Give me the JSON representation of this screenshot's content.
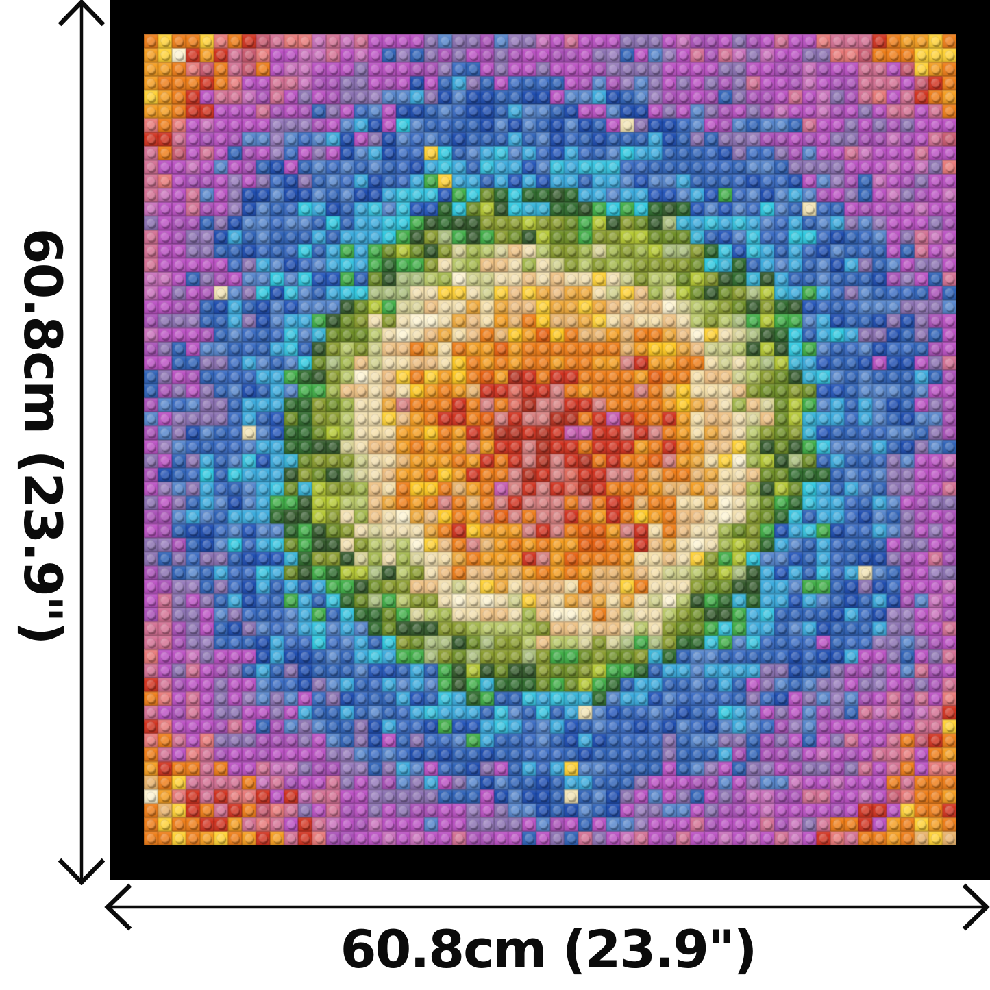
{
  "artwork": {
    "type": "brick-mosaic-in-frame",
    "frame_color": "#000000",
    "background": "#ffffff",
    "mosaic": {
      "grid": 58,
      "seed": 20,
      "noise": {
        "scale": 4.5,
        "amplitude": 1.8,
        "cell_jitter": 0.7
      },
      "sparkle": {
        "probability": 0.013,
        "min_r": 19.0,
        "max_r": 27.5,
        "colors": [
          "#f2e4b4",
          "#ffd133"
        ]
      },
      "rings": [
        {
          "max_r": 3.0,
          "colors": [
            [
              "#d2321f",
              0.48
            ],
            [
              "#b5301f",
              0.18
            ],
            [
              "#d87f7f",
              0.24
            ],
            [
              "#e0685a",
              0.06
            ],
            [
              "#c75ab1",
              0.04
            ]
          ]
        },
        {
          "max_r": 5.2,
          "colors": [
            [
              "#d2321f",
              0.36
            ],
            [
              "#d87f7f",
              0.26
            ],
            [
              "#b5301f",
              0.08
            ],
            [
              "#ee7b18",
              0.2
            ],
            [
              "#e0685a",
              0.06
            ],
            [
              "#c75ab1",
              0.04
            ]
          ]
        },
        {
          "max_r": 7.6,
          "colors": [
            [
              "#f07d17",
              0.4
            ],
            [
              "#e8600f",
              0.18
            ],
            [
              "#d2321f",
              0.1
            ],
            [
              "#d87f7f",
              0.1
            ],
            [
              "#f59d1f",
              0.22
            ]
          ]
        },
        {
          "max_r": 9.8,
          "colors": [
            [
              "#f59d1f",
              0.36
            ],
            [
              "#f07d17",
              0.24
            ],
            [
              "#ffc81f",
              0.12
            ],
            [
              "#e9b36b",
              0.16
            ],
            [
              "#d87f7f",
              0.06
            ],
            [
              "#d2321f",
              0.06
            ]
          ]
        },
        {
          "max_r": 11.8,
          "colors": [
            [
              "#edbc7e",
              0.36
            ],
            [
              "#f0a93a",
              0.22
            ],
            [
              "#ffd133",
              0.1
            ],
            [
              "#f5dfa8",
              0.24
            ],
            [
              "#ef7d17",
              0.08
            ]
          ]
        },
        {
          "max_r": 13.8,
          "colors": [
            [
              "#f2dfae",
              0.4
            ],
            [
              "#eec183",
              0.27
            ],
            [
              "#fdf3d0",
              0.15
            ],
            [
              "#ffd133",
              0.05
            ],
            [
              "#cfd08a",
              0.13
            ]
          ]
        },
        {
          "max_r": 15.4,
          "colors": [
            [
              "#b9c867",
              0.24
            ],
            [
              "#a3b84a",
              0.22
            ],
            [
              "#f2dfae",
              0.17
            ],
            [
              "#8a9c2d",
              0.19
            ],
            [
              "#d9d397",
              0.1
            ],
            [
              "#eec183",
              0.08
            ]
          ]
        },
        {
          "max_r": 17.6,
          "colors": [
            [
              "#8a9c2d",
              0.26
            ],
            [
              "#6f8f26",
              0.22
            ],
            [
              "#b5c832",
              0.15
            ],
            [
              "#33592b",
              0.17
            ],
            [
              "#3fae46",
              0.09
            ],
            [
              "#a9bd7b",
              0.11
            ]
          ]
        },
        {
          "max_r": 19.0,
          "colors": [
            [
              "#2f6b2d",
              0.24
            ],
            [
              "#3fae46",
              0.22
            ],
            [
              "#33592b",
              0.18
            ],
            [
              "#6f8f26",
              0.12
            ],
            [
              "#35b3d8",
              0.14
            ],
            [
              "#2cc8e0",
              0.1
            ]
          ]
        },
        {
          "max_r": 21.4,
          "colors": [
            [
              "#3aabde",
              0.34
            ],
            [
              "#35c3e0",
              0.2
            ],
            [
              "#2e62b8",
              0.16
            ],
            [
              "#5585cc",
              0.14
            ],
            [
              "#3fae46",
              0.06
            ],
            [
              "#2456bb",
              0.1
            ]
          ]
        },
        {
          "max_r": 24.0,
          "colors": [
            [
              "#2e62b8",
              0.26
            ],
            [
              "#3a6cc4",
              0.2
            ],
            [
              "#5585cc",
              0.18
            ],
            [
              "#1d4cb0",
              0.16
            ],
            [
              "#3aabde",
              0.14
            ],
            [
              "#2cc8e0",
              0.06
            ]
          ]
        },
        {
          "max_r": 26.5,
          "colors": [
            [
              "#2e62b8",
              0.24
            ],
            [
              "#1d4cb0",
              0.18
            ],
            [
              "#5585cc",
              0.16
            ],
            [
              "#3a6cc4",
              0.14
            ],
            [
              "#8a70b2",
              0.14
            ],
            [
              "#3aabde",
              0.08
            ],
            [
              "#bb50c4",
              0.06
            ]
          ]
        },
        {
          "max_r": 29.5,
          "colors": [
            [
              "#bb50c4",
              0.28
            ],
            [
              "#a94fb8",
              0.16
            ],
            [
              "#8a70b2",
              0.22
            ],
            [
              "#9579bb",
              0.14
            ],
            [
              "#5585cc",
              0.1
            ],
            [
              "#2e62b8",
              0.1
            ]
          ]
        },
        {
          "max_r": 33.0,
          "colors": [
            [
              "#bb50c4",
              0.4
            ],
            [
              "#c96fbb",
              0.16
            ],
            [
              "#a94fb8",
              0.17
            ],
            [
              "#8a70b2",
              0.11
            ],
            [
              "#d46f93",
              0.16
            ]
          ]
        },
        {
          "max_r": 35.8,
          "colors": [
            [
              "#d46f93",
              0.26
            ],
            [
              "#d2321f",
              0.18
            ],
            [
              "#e87878",
              0.18
            ],
            [
              "#bb50c4",
              0.14
            ],
            [
              "#c9586f",
              0.12
            ],
            [
              "#ef7d17",
              0.12
            ]
          ]
        },
        {
          "max_r": 38.2,
          "colors": [
            [
              "#ef7d17",
              0.36
            ],
            [
              "#f59d1f",
              0.2
            ],
            [
              "#d2321f",
              0.14
            ],
            [
              "#e87878",
              0.1
            ],
            [
              "#ffd133",
              0.1
            ],
            [
              "#e9b36b",
              0.1
            ]
          ]
        },
        {
          "max_r": 99.0,
          "colors": [
            [
              "#f59d1f",
              0.26
            ],
            [
              "#ffd133",
              0.3
            ],
            [
              "#ef7d17",
              0.2
            ],
            [
              "#e9b36b",
              0.13
            ],
            [
              "#fdf3d0",
              0.11
            ]
          ]
        }
      ]
    }
  },
  "dimensions": {
    "height": {
      "label": "60.8cm (23.9\")"
    },
    "width": {
      "label": "60.8cm (23.9\")"
    },
    "line_color": "#0b0b0b"
  }
}
